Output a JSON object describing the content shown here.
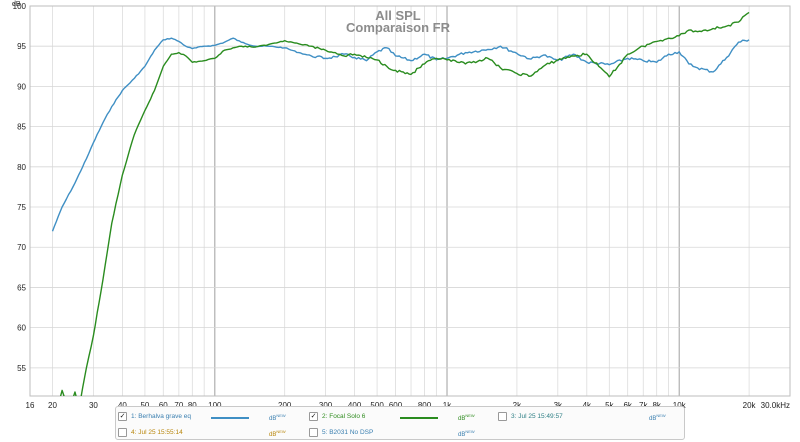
{
  "chart_data": {
    "type": "line",
    "title": "All SPL",
    "subtitle": "Comparaison FR",
    "ylabel": "dB",
    "xlabel": "",
    "x_scale": "log",
    "xlim": [
      16,
      30000
    ],
    "ylim": [
      51.5,
      100
    ],
    "x_ticks": [
      {
        "value": 16,
        "label": "16"
      },
      {
        "value": 20,
        "label": "20"
      },
      {
        "value": 30,
        "label": "30"
      },
      {
        "value": 40,
        "label": "40"
      },
      {
        "value": 50,
        "label": "50"
      },
      {
        "value": 60,
        "label": "60"
      },
      {
        "value": 70,
        "label": "70"
      },
      {
        "value": 80,
        "label": "80"
      },
      {
        "value": 100,
        "label": "100"
      },
      {
        "value": 200,
        "label": "200"
      },
      {
        "value": 300,
        "label": "300"
      },
      {
        "value": 400,
        "label": "400"
      },
      {
        "value": 500,
        "label": "500"
      },
      {
        "value": 600,
        "label": "600"
      },
      {
        "value": 800,
        "label": "800"
      },
      {
        "value": 1000,
        "label": "1k"
      },
      {
        "value": 2000,
        "label": "2k"
      },
      {
        "value": 3000,
        "label": "3k"
      },
      {
        "value": 4000,
        "label": "4k"
      },
      {
        "value": 5000,
        "label": "5k"
      },
      {
        "value": 6000,
        "label": "6k"
      },
      {
        "value": 7000,
        "label": "7k"
      },
      {
        "value": 8000,
        "label": "8k"
      },
      {
        "value": 10000,
        "label": "10k"
      },
      {
        "value": 20000,
        "label": "20k"
      },
      {
        "value": 30000,
        "label": "30.0kHz"
      }
    ],
    "y_ticks": [
      55,
      60,
      65,
      70,
      75,
      80,
      85,
      90,
      95,
      100
    ],
    "grid": true,
    "legend_position": "bottom",
    "series": [
      {
        "name": "1: Berhalva grave eq",
        "color": "#3f8fc4",
        "x": [
          20,
          22,
          25,
          28,
          30,
          33,
          36,
          40,
          45,
          50,
          55,
          60,
          65,
          70,
          75,
          80,
          90,
          100,
          110,
          120,
          130,
          150,
          170,
          200,
          230,
          260,
          300,
          330,
          360,
          400,
          450,
          500,
          550,
          600,
          700,
          800,
          900,
          1000,
          1200,
          1500,
          1700,
          2000,
          2300,
          2600,
          3000,
          3500,
          4000,
          5000,
          6000,
          7000,
          8000,
          9000,
          10000,
          11000,
          12000,
          14000,
          16000,
          18000,
          20000
        ],
        "y": [
          72,
          75,
          78,
          81,
          83,
          85.5,
          87.5,
          89.5,
          91,
          92.5,
          94.5,
          95.8,
          96,
          95.6,
          95,
          94.7,
          95,
          95.1,
          95.5,
          96,
          95.5,
          95,
          95,
          94.8,
          94.2,
          93.8,
          93.5,
          93.7,
          94,
          93.6,
          93.2,
          94.3,
          94.8,
          93.8,
          93.2,
          94,
          93.3,
          93.5,
          94.2,
          94.6,
          95,
          94.1,
          93.4,
          93.9,
          93.2,
          94,
          93,
          92.7,
          93.5,
          93.2,
          93,
          94,
          94.3,
          92.8,
          92.3,
          91.8,
          93.6,
          95.5,
          95.8
        ]
      },
      {
        "name": "2: Focal Solo 6",
        "color": "#2a8c1f",
        "x": [
          20,
          21,
          22,
          23,
          24,
          25,
          26,
          28,
          30,
          33,
          36,
          40,
          45,
          50,
          55,
          60,
          65,
          70,
          75,
          80,
          90,
          100,
          110,
          120,
          130,
          150,
          170,
          200,
          230,
          260,
          300,
          330,
          360,
          400,
          450,
          500,
          550,
          600,
          700,
          800,
          900,
          1000,
          1200,
          1500,
          1700,
          2000,
          2300,
          2600,
          3000,
          3500,
          4000,
          4500,
          5000,
          6000,
          7000,
          8000,
          9000,
          10000,
          11000,
          12000,
          14000,
          16000,
          18000,
          20000
        ],
        "y": [
          48,
          50,
          52.2,
          50.5,
          50.5,
          52,
          50,
          55,
          59,
          66,
          73,
          79,
          84,
          87,
          89.5,
          92.5,
          94,
          94.2,
          93.8,
          93,
          93.2,
          93.5,
          94.5,
          94.8,
          95,
          94.9,
          95.2,
          95.7,
          95.3,
          95,
          94.5,
          94.2,
          93.8,
          94,
          93.6,
          93.3,
          92.5,
          92,
          91.5,
          92.8,
          93.5,
          93.3,
          92.8,
          93.5,
          92.3,
          91.6,
          91.3,
          92.5,
          93.3,
          93.8,
          94,
          92.5,
          91.2,
          94,
          95,
          95.6,
          96,
          96.3,
          97,
          96.8,
          97.2,
          97.5,
          98,
          99.2
        ]
      }
    ]
  },
  "legend": {
    "unit_label": "dB",
    "unit_sup": "NEW",
    "items": [
      {
        "name": "1: Berhalva grave eq",
        "checked": "✓",
        "color": "#3f8fc4",
        "text_color": "#3a7fb0",
        "unit_color": "#3a7fb0",
        "has_line": true
      },
      {
        "name": "2: Focal Solo 6",
        "checked": "✓",
        "color": "#2a8c1f",
        "text_color": "#2f8c1f",
        "unit_color": "#2f8c1f",
        "has_line": true
      },
      {
        "name": "3: Jul 25 15:49:57",
        "checked": "",
        "color": "#2e7f85",
        "text_color": "#2e7f85",
        "unit_color": "#3a7fb0",
        "has_line": false
      },
      {
        "name": "4: Jul 25 15:55:14",
        "checked": "",
        "color": "#b8860b",
        "text_color": "#b8860b",
        "unit_color": "#b8860b",
        "has_line": false
      },
      {
        "name": "5: B2031 No DSP",
        "checked": "",
        "color": "#3a7fb0",
        "text_color": "#3a7fb0",
        "unit_color": "#3a7fb0",
        "has_line": false
      }
    ]
  }
}
